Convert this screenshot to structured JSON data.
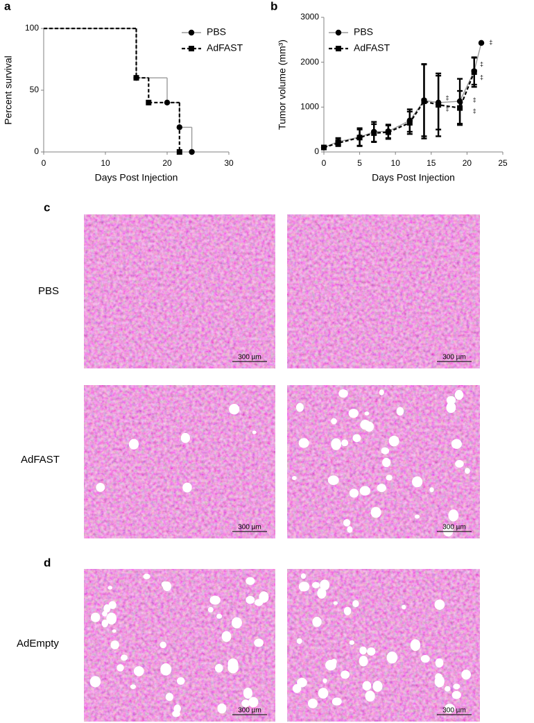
{
  "chart_data": [
    {
      "type": "step",
      "panel_label": "a",
      "xlabel": "Days Post Injection",
      "ylabel": "Percent survival",
      "xlim": [
        0,
        30
      ],
      "xticks": [
        0,
        10,
        20,
        30
      ],
      "ylim": [
        0,
        100
      ],
      "yticks": [
        0,
        50,
        100
      ],
      "legend": "upper right",
      "series": [
        {
          "name": "PBS",
          "color": "#000000",
          "line_color": "#999999",
          "line_style": "solid",
          "marker": "circle",
          "x": [
            0,
            15,
            20,
            22,
            24
          ],
          "values": [
            100,
            60,
            40,
            20,
            0
          ]
        },
        {
          "name": "AdFAST",
          "color": "#000000",
          "line_color": "#000000",
          "line_style": "dashed",
          "marker": "square",
          "x": [
            0,
            15,
            17,
            22
          ],
          "values": [
            100,
            60,
            40,
            0
          ]
        }
      ]
    },
    {
      "type": "errorline",
      "panel_label": "b",
      "xlabel": "Days Post Injection",
      "ylabel": "Tumor volume (mm³)",
      "xlim": [
        0,
        25
      ],
      "xticks": [
        0,
        5,
        10,
        15,
        20,
        25
      ],
      "ylim": [
        0,
        3000
      ],
      "yticks": [
        0,
        1000,
        2000,
        3000
      ],
      "legend": "upper left",
      "series": [
        {
          "name": "PBS",
          "color": "#000000",
          "line_color": "#999999",
          "line_style": "solid",
          "marker": "circle",
          "x": [
            0,
            2,
            5,
            7,
            9,
            12,
            14,
            16,
            19,
            21,
            22
          ],
          "values": [
            100,
            230,
            330,
            450,
            460,
            700,
            1150,
            1100,
            1130,
            1800,
            2430
          ],
          "errors": [
            30,
            80,
            200,
            220,
            150,
            250,
            800,
            600,
            500,
            300,
            0
          ]
        },
        {
          "name": "AdFAST",
          "color": "#000000",
          "line_color": "#000000",
          "line_style": "dashed",
          "marker": "square",
          "x": [
            0,
            2,
            5,
            7,
            9,
            12,
            14,
            16,
            19,
            21
          ],
          "values": [
            100,
            200,
            320,
            420,
            440,
            650,
            1130,
            1050,
            980,
            1780
          ],
          "errors": [
            30,
            70,
            180,
            200,
            150,
            250,
            830,
            700,
            380,
            330
          ]
        }
      ],
      "annotations": [
        {
          "text": "‡",
          "x": 23.1,
          "y": 2430
        },
        {
          "text": "‡",
          "x": 21.8,
          "y": 1950
        },
        {
          "text": "‡",
          "x": 21.8,
          "y": 1650
        },
        {
          "text": "‡",
          "x": 20.8,
          "y": 1150
        },
        {
          "text": "‡",
          "x": 20.8,
          "y": 900
        },
        {
          "text": "‡",
          "x": 17.0,
          "y": 1200
        },
        {
          "text": "‡",
          "x": 17.0,
          "y": 950
        }
      ]
    }
  ],
  "histology": {
    "panels": [
      {
        "label": "c"
      },
      {
        "label": "d"
      }
    ],
    "rows": [
      {
        "name": "PBS",
        "images": [
          {
            "scale_bar": "300 µm"
          },
          {
            "scale_bar": "300 µm"
          }
        ]
      },
      {
        "name": "AdFAST",
        "images": [
          {
            "scale_bar": "300 µm"
          },
          {
            "scale_bar": "300 µm"
          }
        ]
      },
      {
        "name": "AdEmpty",
        "images": [
          {
            "scale_bar": "300 µm"
          },
          {
            "scale_bar": "300 µm"
          }
        ]
      }
    ]
  }
}
